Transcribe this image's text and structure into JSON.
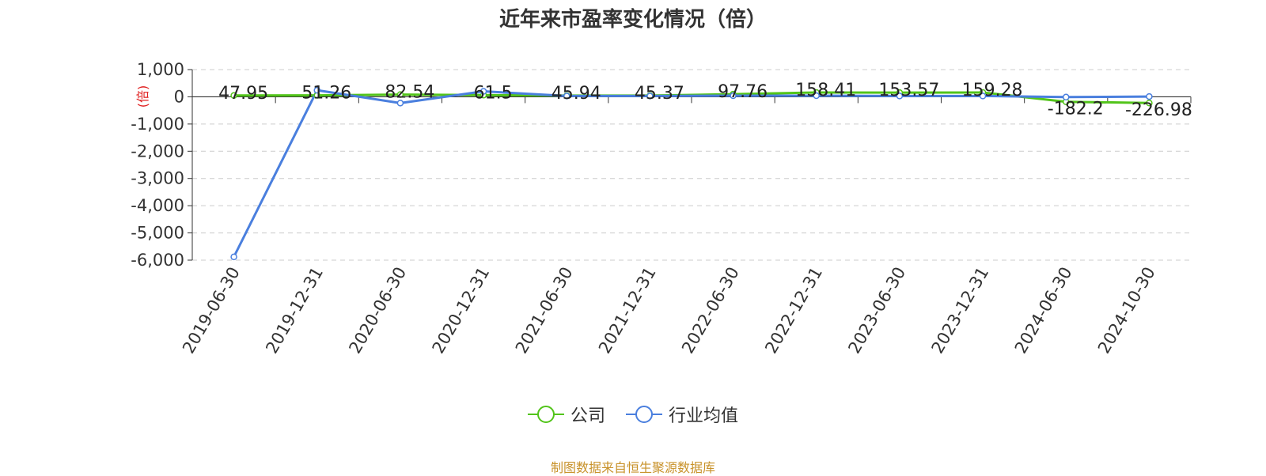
{
  "title": "近年来市盈率变化情况（倍）",
  "source_note": "制图数据来自恒生聚源数据库",
  "colors": {
    "company": "#52c41a",
    "industry": "#4a7fde",
    "unit_label": "#e02020",
    "source": "#c8922a"
  },
  "chart_data": {
    "type": "line",
    "title": "近年来市盈率变化情况（倍）",
    "ylabel": "(倍)",
    "ylim": [
      -6000,
      1000
    ],
    "yticks": [
      1000,
      0,
      -1000,
      -2000,
      -3000,
      -4000,
      -5000,
      -6000
    ],
    "ytick_labels": [
      "1,000",
      "0",
      "-1,000",
      "-2,000",
      "-3,000",
      "-4,000",
      "-5,000",
      "-6,000"
    ],
    "grid": true,
    "legend_position": "bottom",
    "categories": [
      "2019-06-30",
      "2019-12-31",
      "2020-06-30",
      "2020-12-31",
      "2021-06-30",
      "2021-12-31",
      "2022-06-30",
      "2022-12-31",
      "2023-06-30",
      "2023-12-31",
      "2024-06-30",
      "2024-10-30"
    ],
    "series": [
      {
        "name": "公司",
        "color": "#52c41a",
        "values": [
          47.95,
          51.26,
          82.54,
          61.5,
          45.94,
          45.37,
          97.76,
          158.41,
          153.57,
          159.28,
          -182.2,
          -226.98
        ],
        "labels": [
          "47.95",
          "51.26",
          "82.54",
          "61.5",
          "45.94",
          "45.37",
          "97.76",
          "158.41",
          "153.57",
          "159.28",
          "-182.2",
          "-226.98"
        ]
      },
      {
        "name": "行业均值",
        "color": "#4a7fde",
        "values": [
          -5880,
          240,
          -230,
          200,
          30,
          30,
          40,
          40,
          30,
          30,
          -10,
          10
        ]
      }
    ]
  }
}
